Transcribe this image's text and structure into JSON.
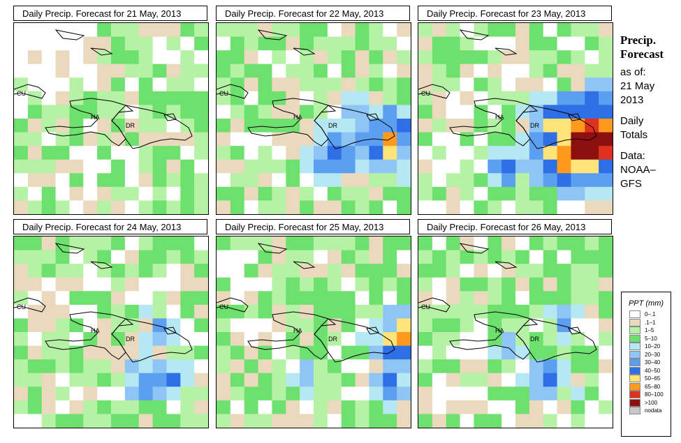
{
  "panels": [
    {
      "title": "Daily Precip. Forecast for  21 May, 2013",
      "labels": {
        "cu": "CU",
        "ha": "HA",
        "dr": "DR"
      }
    },
    {
      "title": "Daily Precip. Forecast for  22 May, 2013",
      "labels": {
        "cu": "CU",
        "ha": "HA",
        "dr": "DR"
      }
    },
    {
      "title": "Daily Precip. Forecast for  23 May, 2013",
      "labels": {
        "cu": "CU",
        "ha": "HA",
        "dr": "DR"
      }
    },
    {
      "title": "Daily Precip. Forecast for  24 May, 2013",
      "labels": {
        "cu": "CU",
        "ha": "HA",
        "dr": "DR"
      }
    },
    {
      "title": "Daily Precip. Forecast for  25 May, 2013",
      "labels": {
        "cu": "CU",
        "ha": "HA",
        "dr": "DR"
      }
    },
    {
      "title": "Daily Precip. Forecast for  26 May, 2013",
      "labels": {
        "cu": "CU",
        "ha": "HA",
        "dr": "DR"
      }
    }
  ],
  "side": {
    "heading1": "Precip.",
    "heading2": "Forecast",
    "asof1": "as of:",
    "asof2": "21 May",
    "asof3": "2013",
    "daily1": "Daily",
    "daily2": "Totals",
    "data1": "Data:",
    "data2": "NOAA–",
    "data3": "GFS"
  },
  "legend": {
    "title": "PPT (mm)",
    "items": [
      {
        "label": "0–.1",
        "color": "#ffffff"
      },
      {
        "label": ".1–1",
        "color": "#ead9bd"
      },
      {
        "label": "1–5",
        "color": "#b6f2a6"
      },
      {
        "label": "5–10",
        "color": "#6ee06e"
      },
      {
        "label": "10–20",
        "color": "#b6e8f4"
      },
      {
        "label": "20–30",
        "color": "#8ec5f4"
      },
      {
        "label": "30–40",
        "color": "#5c9ef0"
      },
      {
        "label": "40–50",
        "color": "#2e6fe6"
      },
      {
        "label": "50–65",
        "color": "#ffe47a"
      },
      {
        "label": "65–80",
        "color": "#ff9a1e"
      },
      {
        "label": "80–100",
        "color": "#e0301e"
      },
      {
        "label": ">100",
        "color": "#8c1010"
      },
      {
        "label": "nodata",
        "color": "#c8c8c8"
      }
    ]
  }
}
